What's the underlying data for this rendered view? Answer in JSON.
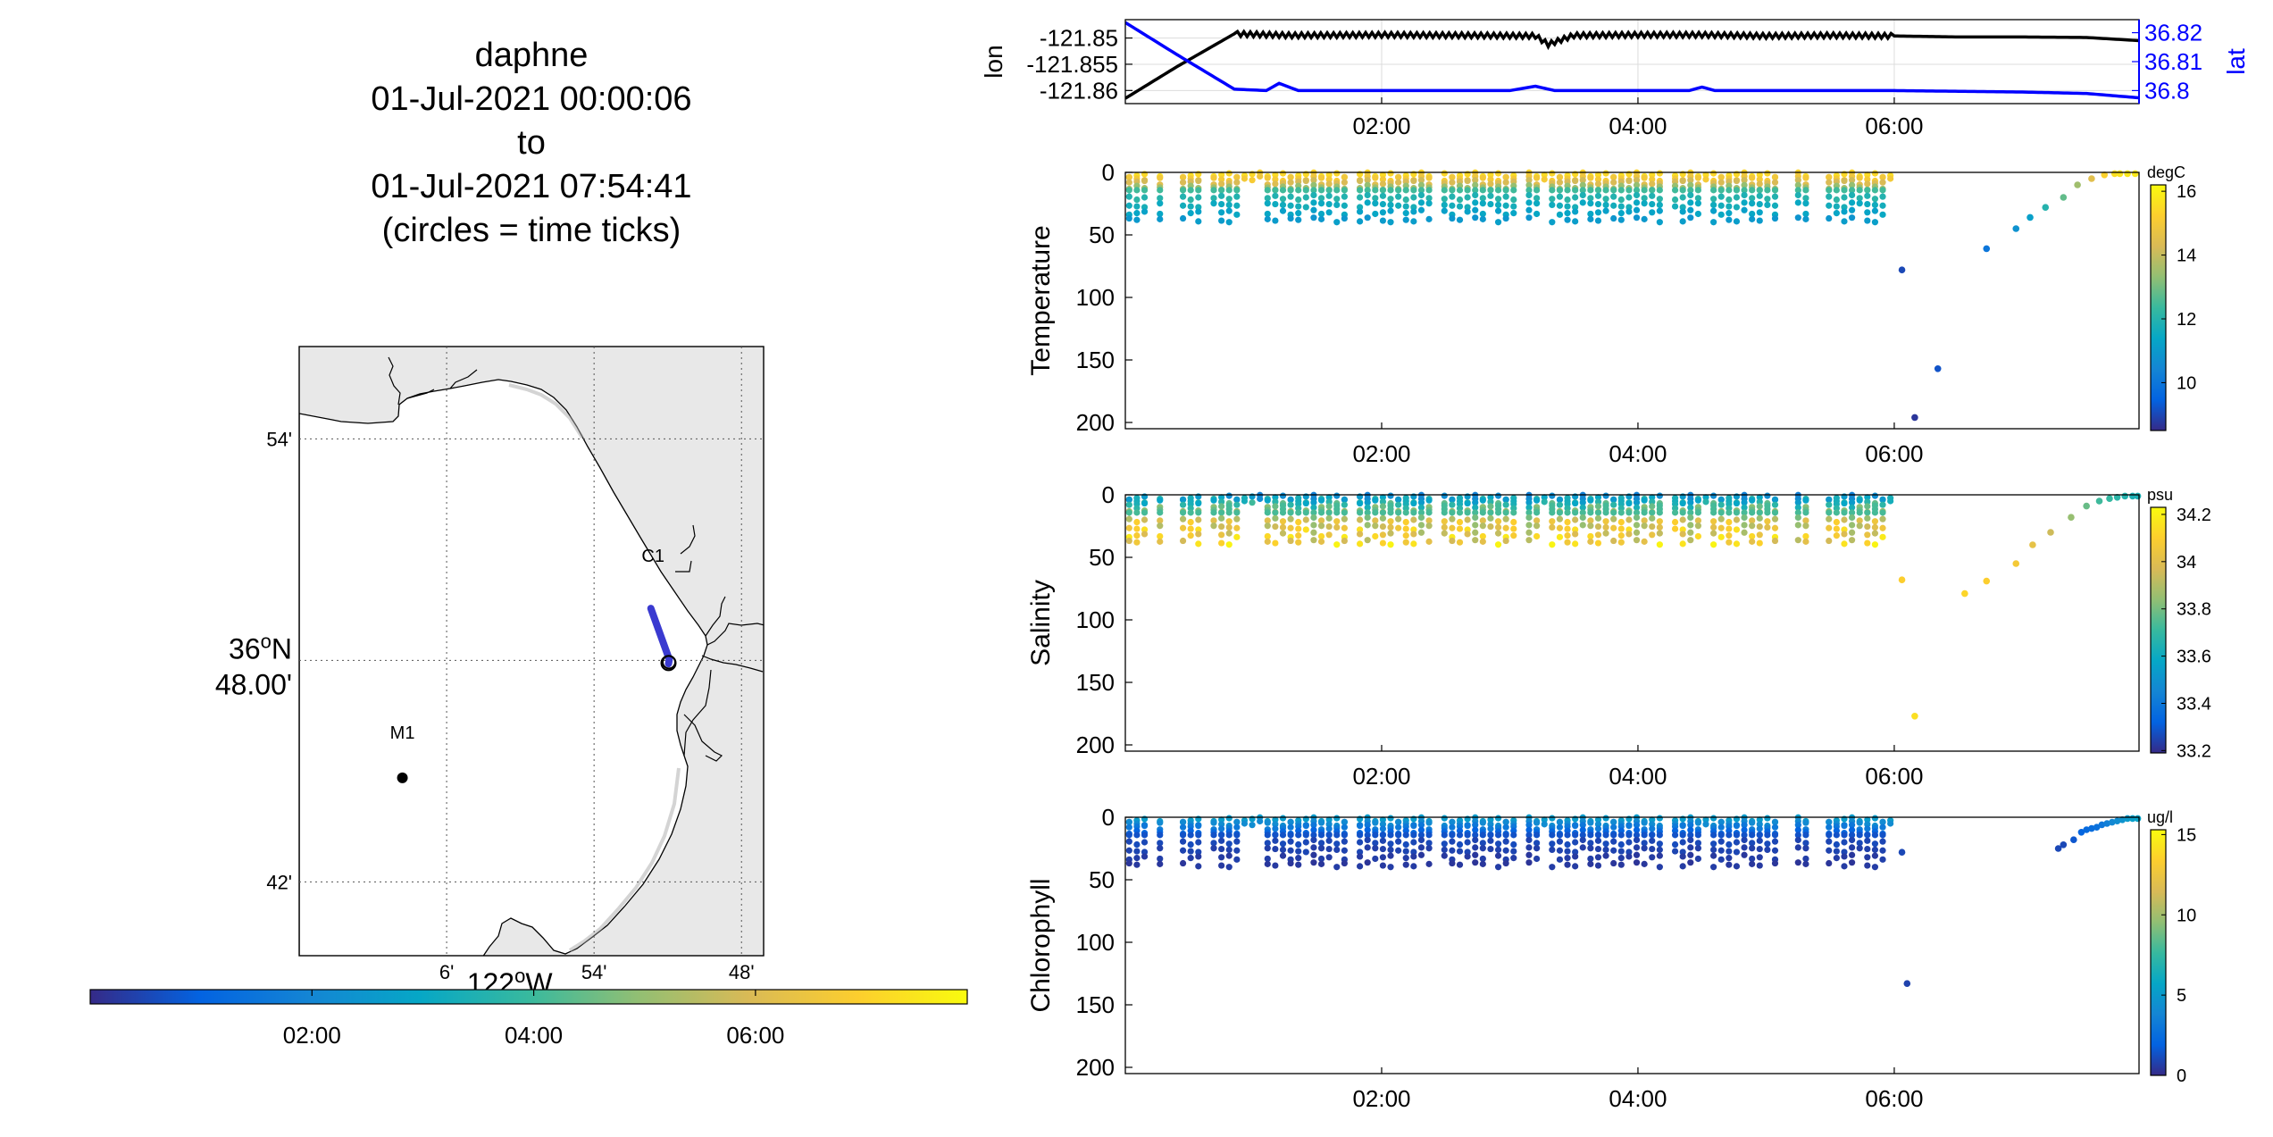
{
  "chart_data": [
    {
      "type": "line",
      "x_unit": "hours since 01-Jul-2021 00:00",
      "xlim": [
        0,
        7.91
      ],
      "xticks": [
        2,
        4,
        6
      ],
      "xticklabels": [
        "02:00",
        "04:00",
        "06:00"
      ],
      "ylabel_left": "lon",
      "ylabel_right": "lat",
      "ylim_left": [
        -121.8625,
        -121.8465
      ],
      "ylim_right": [
        36.7955,
        36.8245
      ],
      "yticks_left": [
        -121.85,
        -121.855,
        -121.86
      ],
      "yticklabels_left": [
        "-121.85",
        "-121.855",
        "-121.86"
      ],
      "yticks_right": [
        36.82,
        36.81,
        36.8
      ],
      "yticklabels_right": [
        "36.82",
        "36.81",
        "36.8"
      ],
      "grid": true,
      "series": [
        {
          "name": "lon",
          "color": "#000000",
          "axis": "left",
          "x": [
            0,
            0.4,
            0.85,
            1.3,
            2.0,
            2.7,
            3.2,
            3.3,
            3.5,
            4.0,
            4.5,
            5.0,
            5.5,
            6.0,
            6.5,
            7.0,
            7.5,
            7.91
          ],
          "y": [
            -121.8615,
            -121.8555,
            -121.8492,
            -121.8495,
            -121.8494,
            -121.8495,
            -121.8496,
            -121.8512,
            -121.8495,
            -121.8494,
            -121.8494,
            -121.8496,
            -121.8495,
            -121.8496,
            -121.8498,
            -121.8498,
            -121.8499,
            -121.8505
          ]
        },
        {
          "name": "lat",
          "color": "#0000ff",
          "axis": "right",
          "x": [
            0,
            0.4,
            0.85,
            1.1,
            1.2,
            1.35,
            2.0,
            3.0,
            3.2,
            3.35,
            4.0,
            4.4,
            4.5,
            4.6,
            5.0,
            6.0,
            7.0,
            7.5,
            7.91
          ],
          "y": [
            36.8235,
            36.8125,
            36.8005,
            36.8,
            36.8025,
            36.8,
            36.8,
            36.8,
            36.8015,
            36.8,
            36.8,
            36.8,
            36.8012,
            36.8,
            36.8,
            36.8,
            36.7995,
            36.799,
            36.7975
          ]
        }
      ]
    },
    {
      "type": "scatter",
      "ylabel": "Temperature",
      "yreverse": true,
      "ylim": [
        0,
        205
      ],
      "yticks": [
        0,
        50,
        100,
        150,
        200
      ],
      "yticklabels": [
        "0",
        "50",
        "100",
        "150",
        "200"
      ],
      "xticks": [
        2,
        4,
        6
      ],
      "xticklabels": [
        "02:00",
        "04:00",
        "06:00"
      ],
      "colorbar": {
        "label": "degC",
        "clim": [
          8.5,
          16.2
        ],
        "ticks": [
          10,
          12,
          14,
          16
        ],
        "ticklabels": [
          "10",
          "12",
          "14",
          "16"
        ]
      },
      "yo_depths": [
        2,
        5,
        8,
        12,
        16,
        20,
        26,
        32,
        38
      ],
      "yo_values": [
        15.5,
        15.0,
        14.3,
        13.5,
        12.6,
        12.0,
        11.6,
        11.3,
        11.0
      ],
      "excluded_hours": [
        0.22,
        0.35,
        0.62,
        1.78,
        2.42,
        3.1,
        4.22,
        5.15,
        5.4
      ],
      "shallow_only_hours": [
        [
          0.93,
          1.07
        ],
        [
          3.22,
          3.28
        ],
        [
          4.52,
          4.56
        ],
        [
          5.92,
          5.98
        ]
      ],
      "descent": {
        "x": [
          6.06,
          6.16,
          6.34,
          6.72,
          6.95,
          7.06,
          7.18,
          7.32,
          7.43,
          7.54,
          7.64,
          7.72,
          7.76,
          7.82,
          7.88
        ],
        "y": [
          78,
          196,
          157,
          61,
          45,
          36,
          28,
          20,
          10,
          5,
          2,
          1,
          1,
          1,
          1
        ],
        "v": [
          9.0,
          8.7,
          9.2,
          10.0,
          10.8,
          11.2,
          12.0,
          12.8,
          13.5,
          14.5,
          15.3,
          15.6,
          15.7,
          15.8,
          15.8
        ]
      }
    },
    {
      "type": "scatter",
      "ylabel": "Salinity",
      "yreverse": true,
      "ylim": [
        0,
        205
      ],
      "yticks": [
        0,
        50,
        100,
        150,
        200
      ],
      "yticklabels": [
        "0",
        "50",
        "100",
        "150",
        "200"
      ],
      "xticks": [
        2,
        4,
        6
      ],
      "xticklabels": [
        "02:00",
        "04:00",
        "06:00"
      ],
      "colorbar": {
        "label": "psu",
        "clim": [
          33.19,
          34.23
        ],
        "ticks": [
          33.2,
          33.4,
          33.6,
          33.8,
          34,
          34.2
        ],
        "ticklabels": [
          "33.2",
          "33.4",
          "33.6",
          "33.8",
          "34",
          "34.2"
        ]
      },
      "yo_depths": [
        2,
        5,
        8,
        12,
        16,
        20,
        26,
        32,
        38
      ],
      "yo_values": [
        33.58,
        33.62,
        33.68,
        33.78,
        33.88,
        33.95,
        34.0,
        34.03,
        34.06
      ],
      "excluded_hours": [
        0.22,
        0.35,
        0.62,
        1.78,
        2.42,
        3.1,
        4.22,
        5.15,
        5.4
      ],
      "shallow_only_hours": [
        [
          0.93,
          1.07
        ],
        [
          3.22,
          3.28
        ],
        [
          4.52,
          4.56
        ],
        [
          5.92,
          5.98
        ]
      ],
      "descent": {
        "x": [
          6.06,
          6.16,
          6.55,
          6.72,
          6.95,
          7.08,
          7.22,
          7.38,
          7.5,
          7.6,
          7.68,
          7.74,
          7.8,
          7.86,
          7.9
        ],
        "y": [
          68,
          177,
          79,
          69,
          55,
          40,
          30,
          18,
          9,
          5,
          3,
          2,
          1,
          1,
          1
        ],
        "v": [
          34.1,
          34.15,
          34.12,
          34.1,
          34.07,
          34.02,
          33.95,
          33.85,
          33.78,
          33.72,
          33.7,
          33.68,
          33.66,
          33.64,
          33.64
        ]
      }
    },
    {
      "type": "scatter",
      "ylabel": "Chlorophyll",
      "yreverse": true,
      "ylim": [
        0,
        205
      ],
      "yticks": [
        0,
        50,
        100,
        150,
        200
      ],
      "yticklabels": [
        "0",
        "50",
        "100",
        "150",
        "200"
      ],
      "xticks": [
        2,
        4,
        6
      ],
      "xticklabels": [
        "02:00",
        "04:00",
        "06:00"
      ],
      "colorbar": {
        "label": "ug/l",
        "clim": [
          0,
          15.3
        ],
        "ticks": [
          0,
          5,
          10,
          15
        ],
        "ticklabels": [
          "0",
          "5",
          "10",
          "15"
        ]
      },
      "yo_depths": [
        2,
        5,
        8,
        12,
        16,
        20,
        26,
        32,
        38
      ],
      "yo_values": [
        5.2,
        4.2,
        3.2,
        2.2,
        1.5,
        1.0,
        0.8,
        0.6,
        0.5
      ],
      "excluded_hours": [
        0.22,
        0.35,
        0.62,
        1.78,
        2.42,
        3.1,
        4.22,
        5.15,
        5.4
      ],
      "shallow_only_hours": [
        [
          0.93,
          1.07
        ],
        [
          3.22,
          3.28
        ],
        [
          4.52,
          4.56
        ],
        [
          5.92,
          5.98
        ]
      ],
      "descent": {
        "x": [
          6.06,
          6.1,
          7.28,
          7.32,
          7.4,
          7.46,
          7.5,
          7.54,
          7.58,
          7.62,
          7.66,
          7.7,
          7.74,
          7.78,
          7.82,
          7.86,
          7.9
        ],
        "y": [
          28,
          133,
          25,
          22,
          18,
          12,
          10,
          9,
          8,
          6,
          5,
          4,
          3,
          2,
          1,
          1,
          1
        ],
        "v": [
          1.0,
          0.8,
          1.0,
          1.0,
          1.5,
          2.0,
          2.3,
          2.5,
          2.7,
          3.0,
          3.5,
          4.0,
          4.3,
          4.6,
          5.0,
          5.3,
          5.5
        ]
      }
    }
  ],
  "title": {
    "line1": "daphne",
    "line2": "01-Jul-2021 00:00:06",
    "line3": "to",
    "line4": "01-Jul-2021 07:54:41",
    "line5": "(circles = time ticks)"
  },
  "map": {
    "lon_range": [
      -122.1,
      -121.785
    ],
    "lat_range": [
      36.6667,
      36.9417
    ],
    "lat_ticks": [
      36.7,
      36.8,
      36.9
    ],
    "lat_ticklabels": [
      "42'",
      "",
      "54'"
    ],
    "lat_center_label_main": "36",
    "lat_center_label_sup": "o",
    "lat_center_label_suffix": "N",
    "lat_center_label_sub": "48.00'",
    "lon_ticks": [
      -122.0,
      -121.9,
      -121.8
    ],
    "lon_ticklabels": [
      "6'",
      "54'",
      "48'"
    ],
    "lon_center_label_main": "122",
    "lon_center_label_sup": "o",
    "lon_center_label_suffix": "W",
    "stations": [
      {
        "name": "M1",
        "lon": -122.03,
        "lat": 36.747
      },
      {
        "name": "C1",
        "lon": -121.878,
        "lat": 36.7998
      }
    ],
    "track": {
      "lon": [
        -121.8615,
        -121.849,
        -121.8495
      ],
      "lat": [
        36.8235,
        36.8005,
        36.7985
      ]
    },
    "land_color": "#e8e8e8",
    "track_color": "#3a3ad0"
  },
  "time_colorbar": {
    "clim": [
      0,
      7.91
    ],
    "ticks": [
      2,
      4,
      6
    ],
    "ticklabels": [
      "02:00",
      "04:00",
      "06:00"
    ]
  },
  "colors": {
    "parula": [
      "#352a87",
      "#0363e1",
      "#1485d4",
      "#06a7c6",
      "#38b99e",
      "#92bf73",
      "#d9ba56",
      "#fcce2e",
      "#f9fb0e"
    ]
  }
}
